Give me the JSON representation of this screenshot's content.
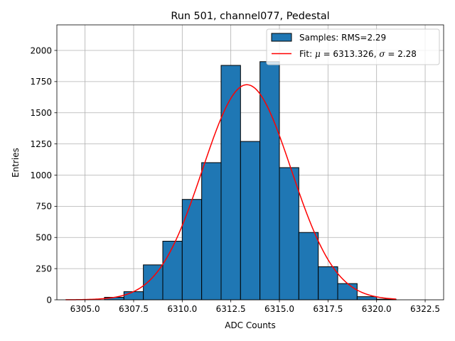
{
  "chart_data": {
    "type": "bar",
    "title": "Run 501, channel077, Pedestal",
    "xlabel": "ADC Counts",
    "ylabel": "Entries",
    "xlim": [
      6303.55,
      6323.45
    ],
    "ylim": [
      0,
      2205
    ],
    "grid": true,
    "legend_position": "top-right",
    "x_ticks": [
      6305.0,
      6307.5,
      6310.0,
      6312.5,
      6315.0,
      6317.5,
      6320.0,
      6322.5
    ],
    "x_tick_labels": [
      "6305.0",
      "6307.5",
      "6310.0",
      "6312.5",
      "6315.0",
      "6317.5",
      "6320.0",
      "6322.5"
    ],
    "y_ticks": [
      0,
      250,
      500,
      750,
      1000,
      1250,
      1500,
      1750,
      2000
    ],
    "y_tick_labels": [
      "0",
      "250",
      "500",
      "750",
      "1000",
      "1250",
      "1500",
      "1750",
      "2000"
    ],
    "series": [
      {
        "name": "Samples: RMS=2.29",
        "kind": "histogram",
        "color": "#1f77b4",
        "edgecolor": "#000000",
        "bin_edges": [
          6306,
          6307,
          6308,
          6309,
          6310,
          6311,
          6312,
          6313,
          6314,
          6315,
          6316,
          6317,
          6318,
          6319,
          6320,
          6321
        ],
        "values": [
          20,
          65,
          280,
          470,
          805,
          1100,
          1880,
          1270,
          1910,
          1060,
          540,
          265,
          130,
          25,
          5
        ]
      },
      {
        "name": "Fit: μ = 6313.326, σ = 2.28",
        "name_parts": [
          "Fit: ",
          "μ",
          " = 6313.326, ",
          "σ",
          " = 2.28"
        ],
        "kind": "gaussian-fit",
        "color": "#ff0000",
        "mu": 6313.326,
        "sigma": 2.28,
        "amplitude": 1725,
        "x_range": [
          6304.0,
          6321.0
        ]
      }
    ]
  }
}
